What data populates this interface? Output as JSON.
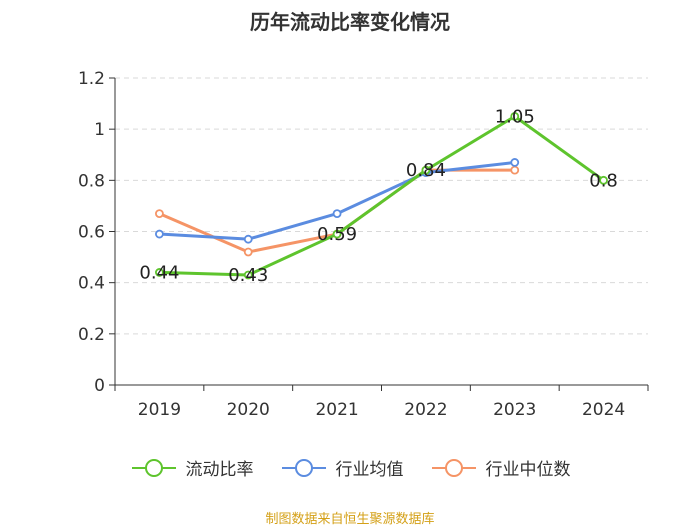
{
  "chart_data": {
    "type": "line",
    "title": "历年流动比率变化情况",
    "categories": [
      "2019",
      "2020",
      "2021",
      "2022",
      "2023",
      "2024"
    ],
    "ylim": [
      0,
      1.2
    ],
    "yticks": [
      "0",
      "0.2",
      "0.4",
      "0.6",
      "0.8",
      "1",
      "1.2"
    ],
    "grid": true,
    "legend_position": "bottom",
    "series": [
      {
        "name": "流动比率",
        "color": "#5ec42d",
        "values": [
          0.44,
          0.43,
          0.59,
          0.84,
          1.05,
          0.8
        ],
        "labels": [
          "0.44",
          "0.43",
          "0.59",
          "0.84",
          "1.05",
          "0.8"
        ],
        "show_labels": true
      },
      {
        "name": "行业均值",
        "color": "#5b8ce0",
        "values": [
          0.59,
          0.57,
          0.67,
          0.83,
          0.87,
          null
        ],
        "show_labels": false
      },
      {
        "name": "行业中位数",
        "color": "#f59466",
        "values": [
          0.67,
          0.52,
          0.59,
          0.84,
          0.84,
          null
        ],
        "show_labels": false
      }
    ],
    "source": "制图数据来自恒生聚源数据库"
  }
}
